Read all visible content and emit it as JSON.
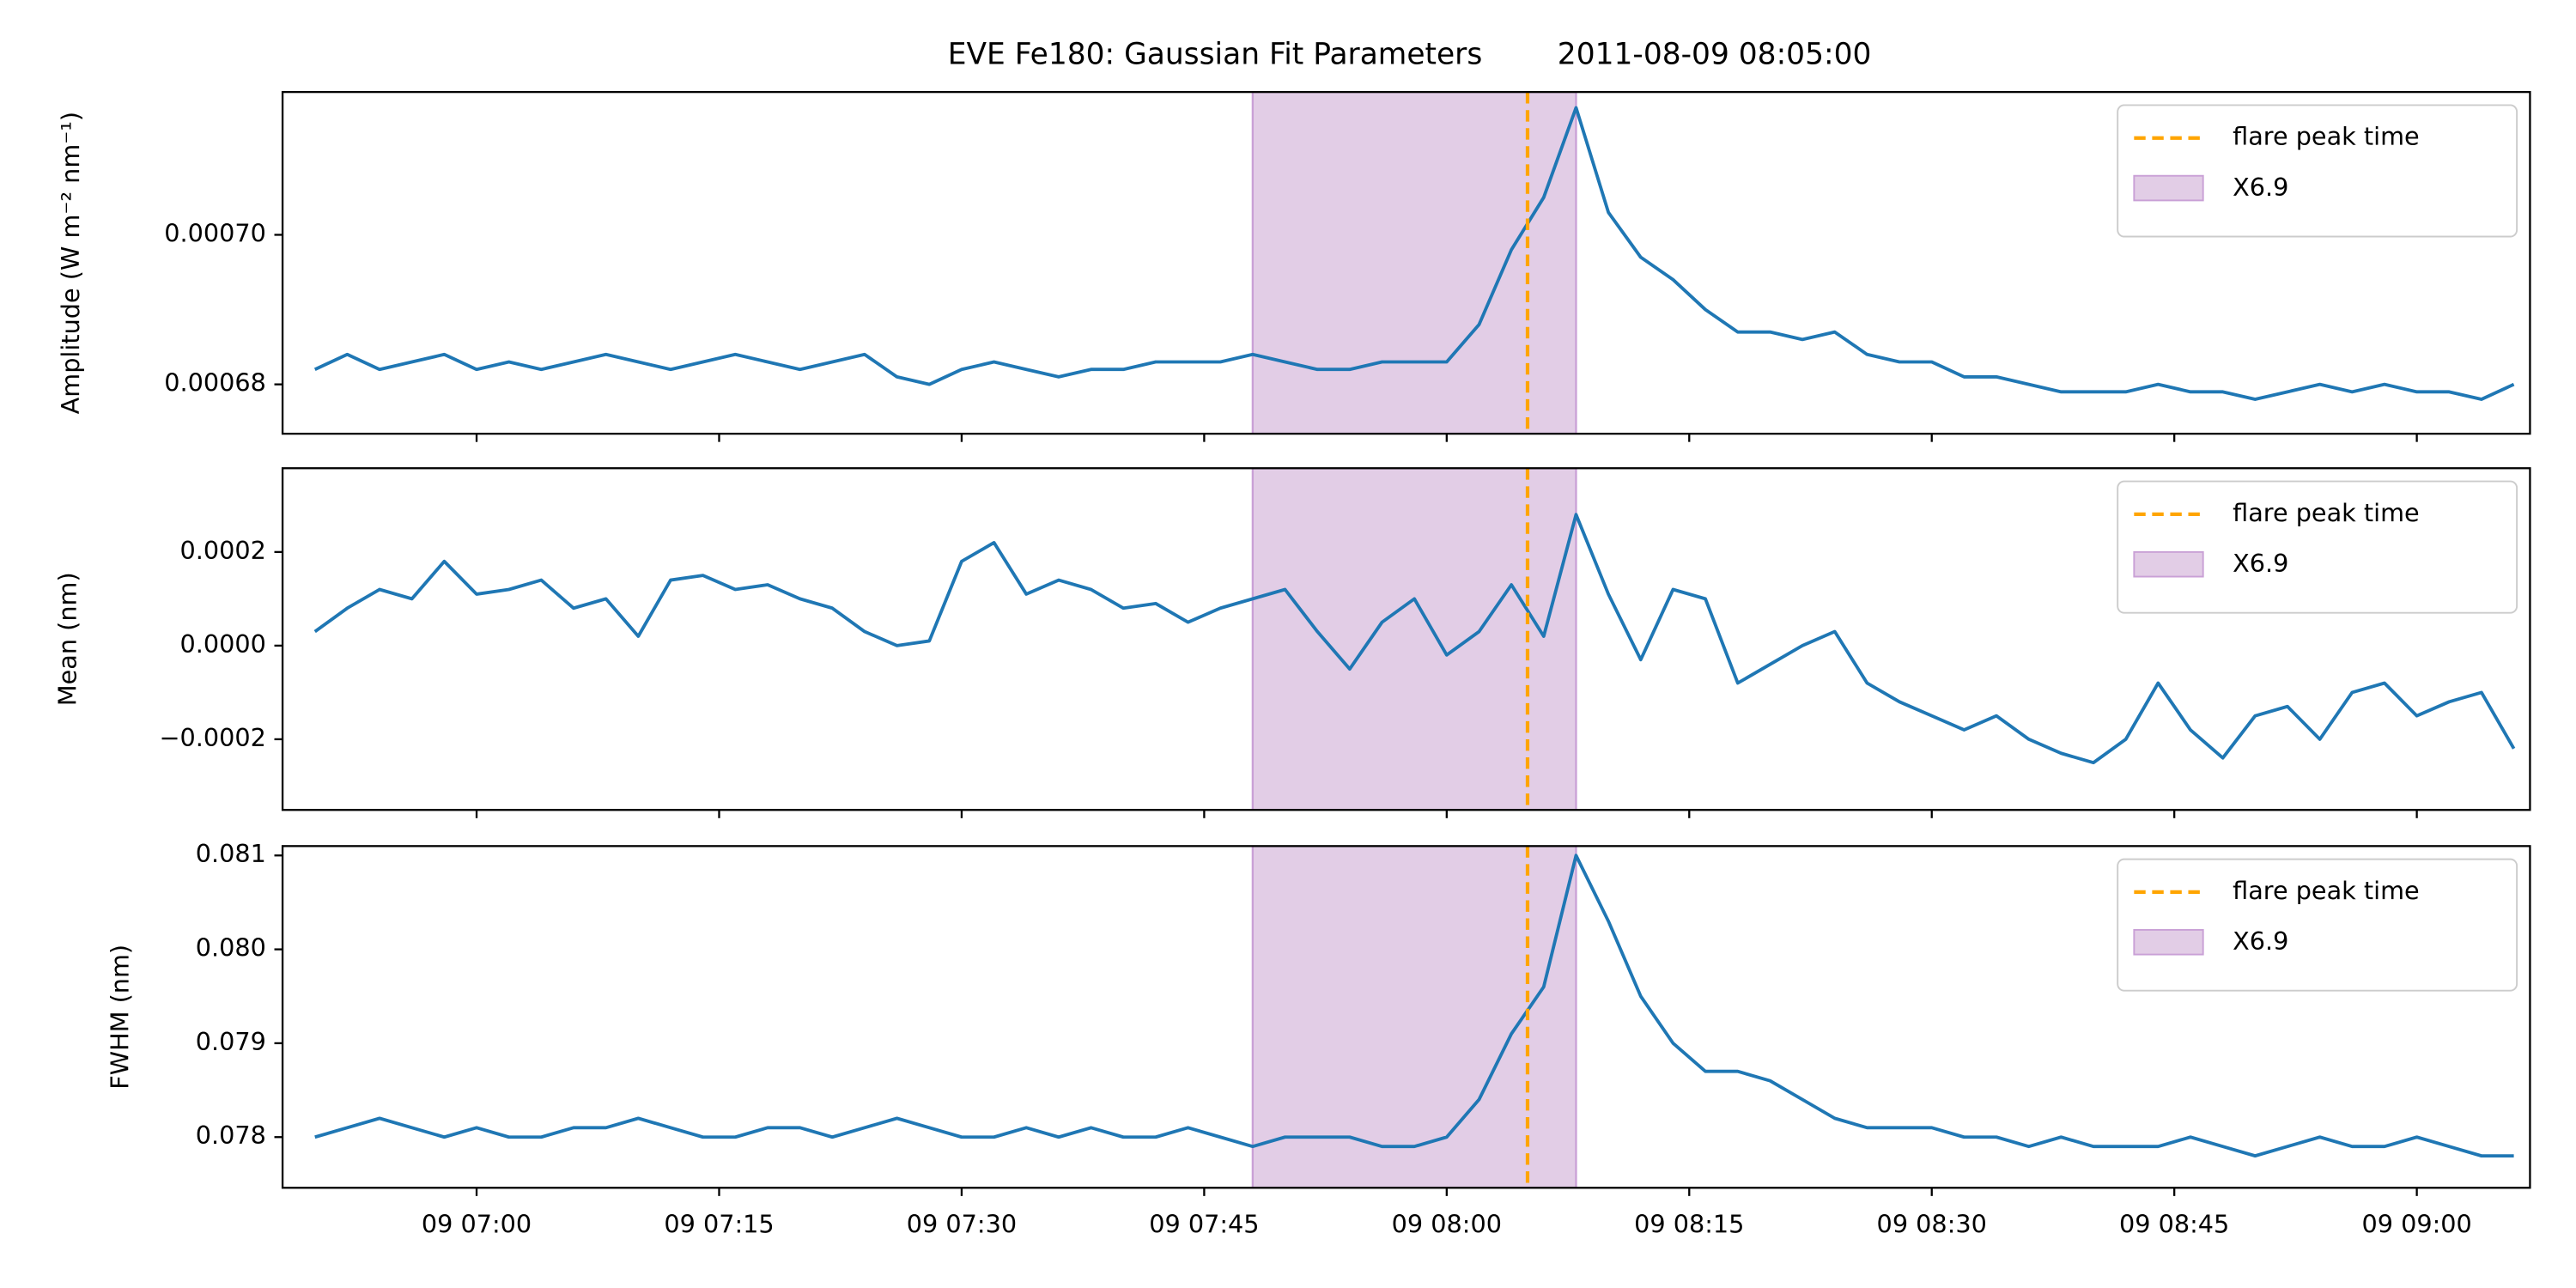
{
  "title": "EVE Fe180: Gaussian Fit Parameters        2011-08-09 08:05:00",
  "chart_data": [
    {
      "type": "line",
      "ylabel": "Amplitude (W m⁻² nm⁻¹)",
      "legend": "upper right",
      "sharex": true,
      "xlim": [
        "09 06:48",
        "09 09:07"
      ],
      "x": [
        "09 06:50",
        "09 06:52",
        "09 06:54",
        "09 06:56",
        "09 06:58",
        "09 07:00",
        "09 07:02",
        "09 07:04",
        "09 07:06",
        "09 07:08",
        "09 07:10",
        "09 07:12",
        "09 07:14",
        "09 07:16",
        "09 07:18",
        "09 07:20",
        "09 07:22",
        "09 07:24",
        "09 07:26",
        "09 07:28",
        "09 07:30",
        "09 07:32",
        "09 07:34",
        "09 07:36",
        "09 07:38",
        "09 07:40",
        "09 07:42",
        "09 07:44",
        "09 07:46",
        "09 07:48",
        "09 07:50",
        "09 07:52",
        "09 07:54",
        "09 07:56",
        "09 07:58",
        "09 08:00",
        "09 08:02",
        "09 08:04",
        "09 08:06",
        "09 08:08",
        "09 08:10",
        "09 08:12",
        "09 08:14",
        "09 08:16",
        "09 08:18",
        "09 08:20",
        "09 08:22",
        "09 08:24",
        "09 08:26",
        "09 08:28",
        "09 08:30",
        "09 08:32",
        "09 08:34",
        "09 08:36",
        "09 08:38",
        "09 08:40",
        "09 08:42",
        "09 08:44",
        "09 08:46",
        "09 08:48",
        "09 08:50",
        "09 08:52",
        "09 08:54",
        "09 08:56",
        "09 08:58",
        "09 09:00",
        "09 09:02",
        "09 09:04",
        "09 09:06"
      ],
      "series": [
        {
          "color": "#1f77b4",
          "values": [
            0.000682,
            0.000684,
            0.000682,
            0.000683,
            0.000684,
            0.000682,
            0.000683,
            0.000682,
            0.000683,
            0.000684,
            0.000683,
            0.000682,
            0.000683,
            0.000684,
            0.000683,
            0.000682,
            0.000683,
            0.000684,
            0.000681,
            0.00068,
            0.000682,
            0.000683,
            0.000682,
            0.000681,
            0.000682,
            0.000682,
            0.000683,
            0.000683,
            0.000683,
            0.000684,
            0.000683,
            0.000682,
            0.000682,
            0.000683,
            0.000683,
            0.000683,
            0.000688,
            0.000698,
            0.000705,
            0.000717,
            0.000703,
            0.000697,
            0.000694,
            0.00069,
            0.000687,
            0.000687,
            0.000686,
            0.000687,
            0.000684,
            0.000683,
            0.000683,
            0.000681,
            0.000681,
            0.00068,
            0.000679,
            0.000679,
            0.000679,
            0.00068,
            0.000679,
            0.000679,
            0.000678,
            0.000679,
            0.00068,
            0.000679,
            0.00068,
            0.000679,
            0.000679,
            0.000678,
            0.00068
          ]
        }
      ],
      "ylim": [
        0.0006734,
        0.0007191
      ],
      "yticks": [
        {
          "value": 0.00068,
          "label": "0.00068"
        },
        {
          "value": 0.0007,
          "label": "0.00070"
        }
      ],
      "vline": {
        "x": "09 08:05",
        "label": "flare peak time",
        "color": "#ffa500"
      },
      "span": {
        "x0": "09 07:48",
        "x1": "09 08:08",
        "label": "X6.9",
        "color": "#e2cde6",
        "edge": "#c9a0d6"
      }
    },
    {
      "type": "line",
      "ylabel": "Mean (nm)",
      "legend": "upper right",
      "sharex": true,
      "xlim": [
        "09 06:48",
        "09 09:07"
      ],
      "x": [
        "09 06:50",
        "09 06:52",
        "09 06:54",
        "09 06:56",
        "09 06:58",
        "09 07:00",
        "09 07:02",
        "09 07:04",
        "09 07:06",
        "09 07:08",
        "09 07:10",
        "09 07:12",
        "09 07:14",
        "09 07:16",
        "09 07:18",
        "09 07:20",
        "09 07:22",
        "09 07:24",
        "09 07:26",
        "09 07:28",
        "09 07:30",
        "09 07:32",
        "09 07:34",
        "09 07:36",
        "09 07:38",
        "09 07:40",
        "09 07:42",
        "09 07:44",
        "09 07:46",
        "09 07:48",
        "09 07:50",
        "09 07:52",
        "09 07:54",
        "09 07:56",
        "09 07:58",
        "09 08:00",
        "09 08:02",
        "09 08:04",
        "09 08:06",
        "09 08:08",
        "09 08:10",
        "09 08:12",
        "09 08:14",
        "09 08:16",
        "09 08:18",
        "09 08:20",
        "09 08:22",
        "09 08:24",
        "09 08:26",
        "09 08:28",
        "09 08:30",
        "09 08:32",
        "09 08:34",
        "09 08:36",
        "09 08:38",
        "09 08:40",
        "09 08:42",
        "09 08:44",
        "09 08:46",
        "09 08:48",
        "09 08:50",
        "09 08:52",
        "09 08:54",
        "09 08:56",
        "09 08:58",
        "09 09:00",
        "09 09:02",
        "09 09:04",
        "09 09:06"
      ],
      "series": [
        {
          "color": "#1f77b4",
          "values": [
            3e-05,
            8e-05,
            0.00012,
            0.0001,
            0.00018,
            0.00011,
            0.00012,
            0.00014,
            8e-05,
            0.0001,
            2e-05,
            0.00014,
            0.00015,
            0.00012,
            0.00013,
            0.0001,
            8e-05,
            3e-05,
            0,
            1e-05,
            0.00018,
            0.00022,
            0.00011,
            0.00014,
            0.00012,
            8e-05,
            9e-05,
            5e-05,
            8e-05,
            0.0001,
            0.00012,
            3e-05,
            -5e-05,
            5e-05,
            0.0001,
            -2e-05,
            3e-05,
            0.00013,
            2e-05,
            0.00028,
            0.00011,
            -3e-05,
            0.00012,
            0.0001,
            -8e-05,
            -4e-05,
            0,
            3e-05,
            -8e-05,
            -0.00012,
            -0.00015,
            -0.00018,
            -0.00015,
            -0.0002,
            -0.00023,
            -0.00025,
            -0.0002,
            -8e-05,
            -0.00018,
            -0.00024,
            -0.00015,
            -0.00013,
            -0.0002,
            -0.0001,
            -8e-05,
            -0.00015,
            -0.00012,
            -0.0001,
            -0.00022
          ]
        }
      ],
      "ylim": [
        -0.000351,
        0.000379
      ],
      "yticks": [
        {
          "value": -0.0002,
          "label": "−0.0002"
        },
        {
          "value": 0,
          "label": "0.0000"
        },
        0.0002
      ],
      "vline": {
        "x": "09 08:05",
        "label": "flare peak time",
        "color": "#ffa500"
      },
      "span": {
        "x0": "09 07:48",
        "x1": "09 08:08",
        "label": "X6.9",
        "color": "#e2cde6",
        "edge": "#c9a0d6"
      }
    },
    {
      "type": "line",
      "ylabel": "FWHM (nm)",
      "legend": "upper right",
      "xlim": [
        "09 06:48",
        "09 09:07"
      ],
      "xticks": [
        "09 07:00",
        "09 07:15",
        "09 07:30",
        "09 07:45",
        "09 08:00",
        "09 08:15",
        "09 08:30",
        "09 08:45",
        "09 09:00"
      ],
      "x": [
        "09 06:50",
        "09 06:52",
        "09 06:54",
        "09 06:56",
        "09 06:58",
        "09 07:00",
        "09 07:02",
        "09 07:04",
        "09 07:06",
        "09 07:08",
        "09 07:10",
        "09 07:12",
        "09 07:14",
        "09 07:16",
        "09 07:18",
        "09 07:20",
        "09 07:22",
        "09 07:24",
        "09 07:26",
        "09 07:28",
        "09 07:30",
        "09 07:32",
        "09 07:34",
        "09 07:36",
        "09 07:38",
        "09 07:40",
        "09 07:42",
        "09 07:44",
        "09 07:46",
        "09 07:48",
        "09 07:50",
        "09 07:52",
        "09 07:54",
        "09 07:56",
        "09 07:58",
        "09 08:00",
        "09 08:02",
        "09 08:04",
        "09 08:06",
        "09 08:08",
        "09 08:10",
        "09 08:12",
        "09 08:14",
        "09 08:16",
        "09 08:18",
        "09 08:20",
        "09 08:22",
        "09 08:24",
        "09 08:26",
        "09 08:28",
        "09 08:30",
        "09 08:32",
        "09 08:34",
        "09 08:36",
        "09 08:38",
        "09 08:40",
        "09 08:42",
        "09 08:44",
        "09 08:46",
        "09 08:48",
        "09 08:50",
        "09 08:52",
        "09 08:54",
        "09 08:56",
        "09 08:58",
        "09 09:00",
        "09 09:02",
        "09 09:04",
        "09 09:06"
      ],
      "series": [
        {
          "color": "#1f77b4",
          "values": [
            0.078,
            0.0781,
            0.0782,
            0.0781,
            0.078,
            0.0781,
            0.078,
            0.078,
            0.0781,
            0.0781,
            0.0782,
            0.0781,
            0.078,
            0.078,
            0.0781,
            0.0781,
            0.078,
            0.0781,
            0.0782,
            0.0781,
            0.078,
            0.078,
            0.0781,
            0.078,
            0.0781,
            0.078,
            0.078,
            0.0781,
            0.078,
            0.0779,
            0.078,
            0.078,
            0.078,
            0.0779,
            0.0779,
            0.078,
            0.0784,
            0.0791,
            0.0796,
            0.081,
            0.0803,
            0.0795,
            0.079,
            0.0787,
            0.0787,
            0.0786,
            0.0784,
            0.0782,
            0.0781,
            0.0781,
            0.0781,
            0.078,
            0.078,
            0.0779,
            0.078,
            0.0779,
            0.0779,
            0.0779,
            0.078,
            0.0779,
            0.0778,
            0.0779,
            0.078,
            0.0779,
            0.0779,
            0.078,
            0.0779,
            0.0778,
            0.0778
          ]
        }
      ],
      "ylim": [
        0.07746,
        0.0811
      ],
      "yticks": [
        0.078,
        0.079,
        {
          "value": 0.08,
          "label": "0.080"
        },
        0.081
      ],
      "vline": {
        "x": "09 08:05",
        "label": "flare peak time",
        "color": "#ffa500"
      },
      "span": {
        "x0": "09 07:48",
        "x1": "09 08:08",
        "label": "X6.9",
        "color": "#e2cde6",
        "edge": "#c9a0d6"
      }
    }
  ]
}
